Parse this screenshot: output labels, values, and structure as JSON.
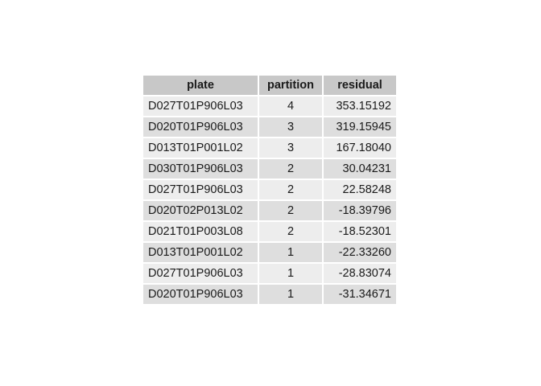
{
  "chart_data": {
    "type": "table",
    "columns": [
      "plate",
      "partition",
      "residual"
    ],
    "rows": [
      {
        "plate": "D027T01P906L03",
        "partition": "4",
        "residual": "353.15192"
      },
      {
        "plate": "D020T01P906L03",
        "partition": "3",
        "residual": "319.15945"
      },
      {
        "plate": "D013T01P001L02",
        "partition": "3",
        "residual": "167.18040"
      },
      {
        "plate": "D030T01P906L03",
        "partition": "2",
        "residual": " 30.04231"
      },
      {
        "plate": "D027T01P906L03",
        "partition": "2",
        "residual": " 22.58248"
      },
      {
        "plate": "D020T02P013L02",
        "partition": "2",
        "residual": "-18.39796"
      },
      {
        "plate": "D021T01P003L08",
        "partition": "2",
        "residual": "-18.52301"
      },
      {
        "plate": "D013T01P001L02",
        "partition": "1",
        "residual": "-22.33260"
      },
      {
        "plate": "D027T01P906L03",
        "partition": "1",
        "residual": "-28.83074"
      },
      {
        "plate": "D020T01P906L03",
        "partition": "1",
        "residual": "-31.34671"
      }
    ]
  },
  "colors": {
    "header_bg": "#c8c8c8",
    "row_odd_bg": "#ededed",
    "row_even_bg": "#dedede",
    "text": "#1a1a1a"
  }
}
